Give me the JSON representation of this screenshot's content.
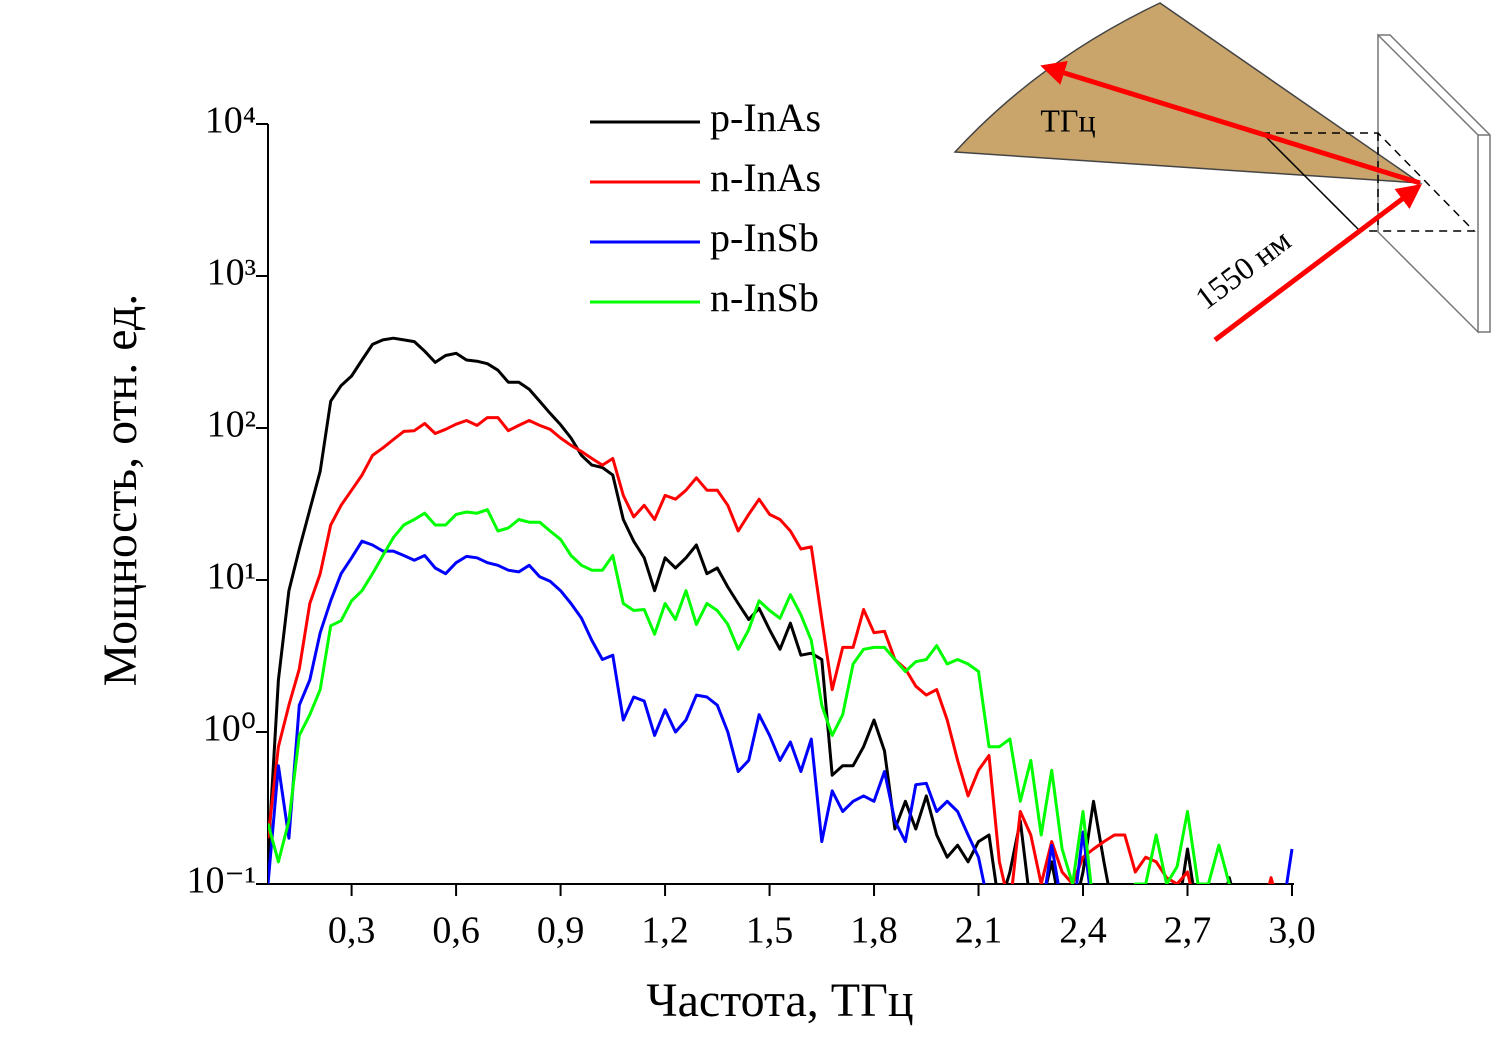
{
  "chart_data": {
    "type": "line",
    "xlabel": "Частота, ТГц",
    "ylabel": "Мощность, отн. ед.",
    "annotations": [
      "ТГц",
      "1550 нм"
    ],
    "ylog": true,
    "xlim": [
      0.06,
      3.0
    ],
    "ylim": [
      0.1,
      10000
    ],
    "xticks": [
      {
        "value": 0.3,
        "label": "0,3"
      },
      {
        "value": 0.6,
        "label": "0,6"
      },
      {
        "value": 0.9,
        "label": "0,9"
      },
      {
        "value": 1.2,
        "label": "1,2"
      },
      {
        "value": 1.5,
        "label": "1,5"
      },
      {
        "value": 1.8,
        "label": "1,8"
      },
      {
        "value": 2.1,
        "label": "2,1"
      },
      {
        "value": 2.4,
        "label": "2,4"
      },
      {
        "value": 2.7,
        "label": "2,7"
      },
      {
        "value": 3.0,
        "label": "3,0"
      }
    ],
    "yticks": [
      {
        "value": 0.1,
        "label": "10⁻¹"
      },
      {
        "value": 1,
        "label": "10⁰"
      },
      {
        "value": 10,
        "label": "10¹"
      },
      {
        "value": 100,
        "label": "10²"
      },
      {
        "value": 1000,
        "label": "10³"
      },
      {
        "value": 10000,
        "label": "10⁴"
      }
    ],
    "x": [
      0.06,
      0.09,
      0.12,
      0.15,
      0.18,
      0.21,
      0.24,
      0.27,
      0.3,
      0.33,
      0.36,
      0.39,
      0.42,
      0.45,
      0.48,
      0.51,
      0.54,
      0.57,
      0.6,
      0.63,
      0.66,
      0.69,
      0.72,
      0.75,
      0.78,
      0.81,
      0.84,
      0.87,
      0.9,
      0.93,
      0.96,
      0.99,
      1.02,
      1.05,
      1.08,
      1.11,
      1.14,
      1.17,
      1.2,
      1.23,
      1.26,
      1.29,
      1.32,
      1.35,
      1.38,
      1.41,
      1.44,
      1.47,
      1.5,
      1.53,
      1.56,
      1.59,
      1.62,
      1.65,
      1.68,
      1.71,
      1.74,
      1.77,
      1.8,
      1.83,
      1.86,
      1.89,
      1.92,
      1.95,
      1.98,
      2.01,
      2.04,
      2.07,
      2.1,
      2.13,
      2.16,
      2.19,
      2.22,
      2.25,
      2.28,
      2.31,
      2.34,
      2.37,
      2.4,
      2.43,
      2.46,
      2.49,
      2.52,
      2.55,
      2.58,
      2.61,
      2.64,
      2.67,
      2.7,
      2.73,
      2.76,
      2.79,
      2.82,
      2.85,
      2.88,
      2.91,
      2.94,
      2.97,
      3.0
    ],
    "series": [
      {
        "name": "p-InAs",
        "color": "#000000",
        "values": [
          0.15,
          2.2,
          8.5,
          16,
          29,
          52,
          150,
          190,
          220,
          280,
          355,
          380,
          390,
          380,
          370,
          320,
          270,
          300,
          310,
          280,
          275,
          265,
          240,
          200,
          200,
          180,
          150,
          125,
          105,
          86,
          66,
          57,
          55,
          49,
          25,
          18,
          14,
          8.5,
          14,
          12,
          14,
          17,
          11,
          12,
          9,
          7,
          5.5,
          6.5,
          4.7,
          3.5,
          5.2,
          3.2,
          3.3,
          3,
          0.52,
          0.6,
          0.6,
          0.8,
          1.2,
          0.75,
          0.23,
          0.35,
          0.23,
          0.38,
          0.21,
          0.15,
          0.18,
          0.14,
          0.19,
          0.21,
          0.07,
          0.12,
          0.26,
          0.07,
          0.07,
          0.14,
          0.06,
          0.06,
          0.12,
          0.35,
          0.14,
          0.06,
          0.06,
          0.08,
          0.06,
          0.06,
          0.07,
          0.06,
          0.17,
          0.06,
          0.06,
          0.06,
          0.11,
          0.06,
          0.06,
          0.06,
          0.06,
          0.06,
          0.06
        ]
      },
      {
        "name": "n-InAs",
        "color": "#ff0000",
        "values": [
          0.2,
          0.8,
          1.5,
          2.6,
          7,
          11,
          23,
          31,
          39,
          49,
          66,
          74,
          84,
          95,
          96,
          107,
          92,
          98,
          106,
          112,
          104,
          117,
          117,
          96,
          104,
          112,
          104,
          98,
          86,
          77,
          70,
          63,
          57,
          63,
          36,
          26,
          31,
          25,
          36,
          34,
          39,
          47,
          39,
          39,
          31,
          21,
          27,
          34,
          27,
          25,
          21,
          16,
          16.5,
          5.5,
          1.9,
          3.6,
          3.6,
          6.4,
          4.5,
          4.6,
          3,
          2.6,
          2,
          1.75,
          1.9,
          1.2,
          0.65,
          0.38,
          0.56,
          0.7,
          0.14,
          0.07,
          0.3,
          0.21,
          0.1,
          0.19,
          0.12,
          0.1,
          0.15,
          0.17,
          0.19,
          0.21,
          0.21,
          0.12,
          0.15,
          0.14,
          0.11,
          0.1,
          0.12,
          0.06,
          0.06,
          0.06,
          0.06,
          0.06,
          0.06,
          0.06,
          0.11,
          0.06,
          0.06
        ]
      },
      {
        "name": "p-InSb",
        "color": "#0000ff",
        "values": [
          0.1,
          0.6,
          0.2,
          1.5,
          2.2,
          4.5,
          7.3,
          11,
          14,
          18,
          17,
          15.5,
          15.5,
          14.5,
          13.5,
          14.5,
          12,
          11,
          13,
          14.3,
          14,
          13,
          12.5,
          11.6,
          11.3,
          12.5,
          10.5,
          9.8,
          8.5,
          7,
          5.6,
          4,
          3,
          3.2,
          1.2,
          1.7,
          1.6,
          0.95,
          1.4,
          1.0,
          1.2,
          1.75,
          1.7,
          1.5,
          1.0,
          0.55,
          0.65,
          1.3,
          0.95,
          0.65,
          0.86,
          0.55,
          0.9,
          0.19,
          0.41,
          0.3,
          0.35,
          0.38,
          0.35,
          0.55,
          0.26,
          0.19,
          0.45,
          0.46,
          0.3,
          0.35,
          0.3,
          0.21,
          0.15,
          0.07,
          0.06,
          0.06,
          0.06,
          0.06,
          0.06,
          0.18,
          0.07,
          0.06,
          0.22,
          0.06,
          0.06,
          0.06,
          0.06,
          0.06,
          0.06,
          0.06,
          0.06,
          0.06,
          0.06,
          0.06,
          0.06,
          0.06,
          0.06,
          0.06,
          0.06,
          0.06,
          0.06,
          0.06,
          0.17
        ]
      },
      {
        "name": "n-InSb",
        "color": "#00ff00",
        "values": [
          0.25,
          0.14,
          0.26,
          0.95,
          1.3,
          1.9,
          5,
          5.4,
          7.3,
          8.5,
          11,
          14.5,
          19,
          23,
          25,
          27.5,
          23,
          23,
          27,
          28,
          27.5,
          29,
          21,
          22,
          25,
          24,
          24,
          21,
          18.5,
          14.5,
          12.5,
          11.6,
          11.6,
          14.5,
          7,
          6.3,
          6.4,
          4.4,
          7,
          5.5,
          8.5,
          5.1,
          7,
          6.3,
          5.1,
          3.5,
          4.7,
          7.3,
          6.3,
          5.6,
          8,
          5.9,
          4,
          1.5,
          0.95,
          1.3,
          2.8,
          3.5,
          3.6,
          3.6,
          3,
          2.5,
          2.9,
          3,
          3.7,
          2.8,
          3,
          2.8,
          2.5,
          0.8,
          0.8,
          0.9,
          0.35,
          0.65,
          0.21,
          0.56,
          0.17,
          0.1,
          0.3,
          0.07,
          0.06,
          0.06,
          0.06,
          0.1,
          0.1,
          0.21,
          0.1,
          0.13,
          0.3,
          0.1,
          0.1,
          0.18,
          0.1,
          0.06,
          0.06,
          0.06,
          0.06,
          0.06,
          0.06
        ]
      }
    ]
  }
}
